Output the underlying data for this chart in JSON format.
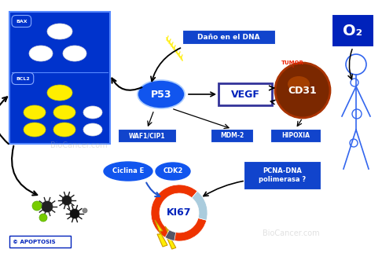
{
  "bg_color": "#ffffff",
  "blue_dark": "#0022bb",
  "blue_mid": "#1144cc",
  "blue_cell": "#0033cc",
  "blue_ellipse": "#1155ee",
  "yellow": "#ffee00",
  "orange_red": "#ee3300",
  "light_gray_blue": "#aaccdd",
  "dark_gray": "#444455",
  "brown_tumor": "#8B3000",
  "green_cell": "#77cc00",
  "black": "#000000",
  "white": "#ffffff",
  "blue_arrow": "#2255cc",
  "labels": {
    "dano_dna": "Daño en el DNA",
    "p53": "P53",
    "vegf": "VEGF",
    "o2": "O₂",
    "cd31": "CD31",
    "tumor": "TUMOR",
    "waf1": "WAF1/CIP1",
    "mdm2": "MDM-2",
    "hipoxia": "HIPOXIA",
    "ciclina_e": "Ciclina E",
    "cdk2": "CDK2",
    "ki67": "KI67",
    "pcna": "PCNA-DNA\npolimerasa ?",
    "apoptosis": "APOPTOSIS",
    "bax": "BAX",
    "bcl2": "BCL2"
  }
}
